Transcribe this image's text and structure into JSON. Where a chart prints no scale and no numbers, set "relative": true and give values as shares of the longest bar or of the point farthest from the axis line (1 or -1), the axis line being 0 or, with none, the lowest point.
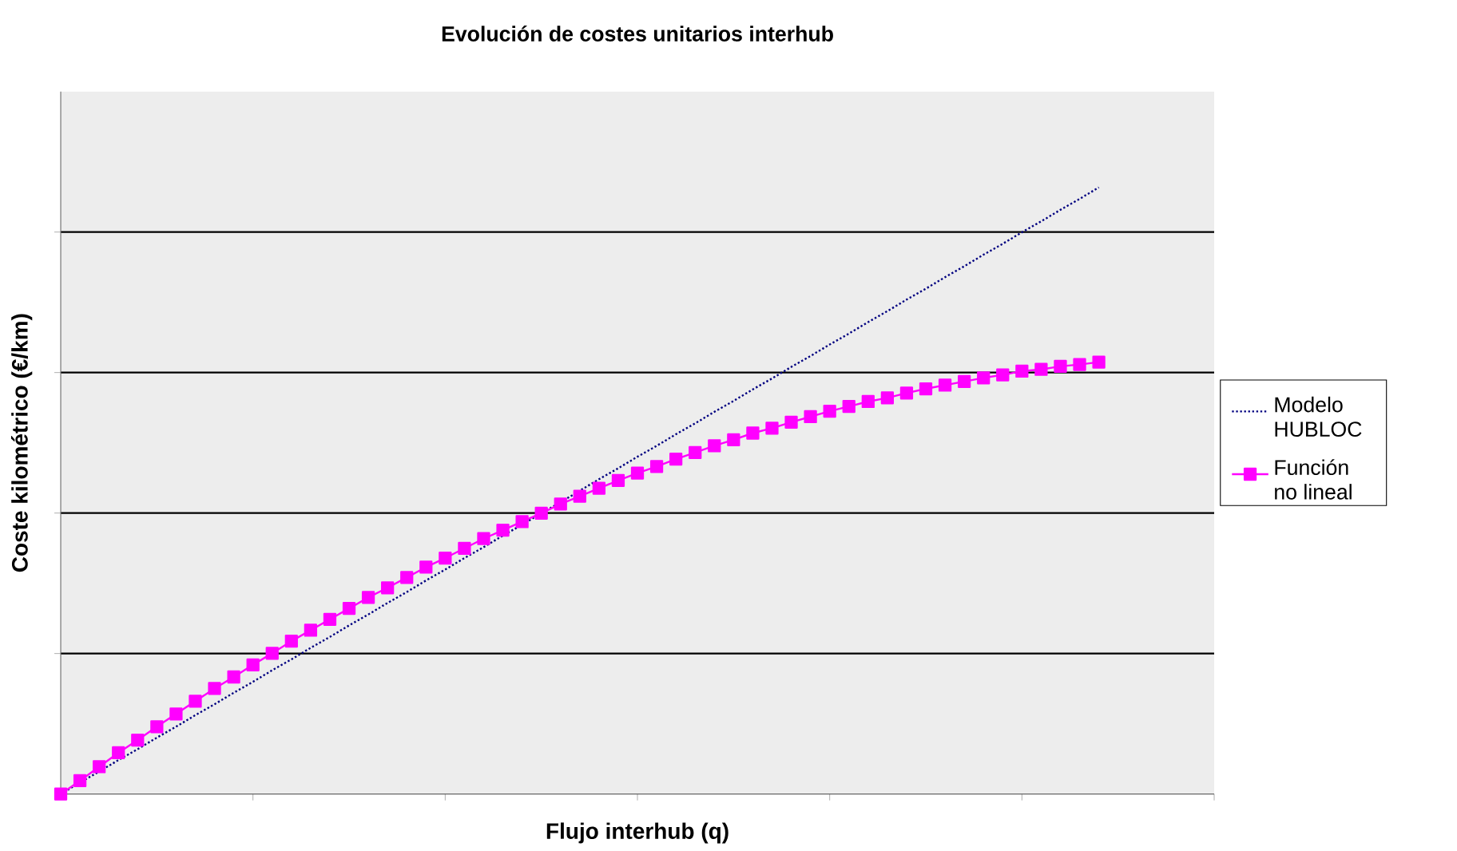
{
  "chart_data": {
    "type": "line",
    "title": "Evolución de costes unitarios interhub",
    "xlabel": "Flujo interhub (q)",
    "ylabel": "Coste kilométrico (€/km)",
    "relative": true,
    "grid": "y",
    "legend": "right",
    "tick_labels": false,
    "categories": [
      null,
      null,
      null,
      null,
      null,
      null,
      null,
      null,
      null,
      null,
      null,
      null,
      null,
      null,
      null,
      null,
      null,
      null,
      null,
      null,
      null,
      null,
      null,
      null,
      null,
      null,
      null,
      null,
      null,
      null,
      null,
      null,
      null,
      null,
      null,
      null,
      null,
      null,
      null,
      null,
      null,
      null,
      null,
      null,
      null,
      null,
      null,
      null,
      null,
      null,
      null,
      null,
      null,
      null,
      null
    ],
    "series": [
      {
        "name": "Modelo HUBLOC",
        "color": "#000080",
        "marker": "none",
        "line_style": "dotted",
        "values": [
          0,
          0.019,
          0.037,
          0.056,
          0.074,
          0.093,
          0.111,
          0.13,
          0.148,
          0.167,
          0.185,
          0.204,
          0.222,
          0.241,
          0.259,
          0.278,
          0.296,
          0.315,
          0.333,
          0.352,
          0.37,
          0.389,
          0.407,
          0.426,
          0.444,
          0.463,
          0.481,
          0.5,
          0.519,
          0.537,
          0.556,
          0.574,
          0.593,
          0.611,
          0.63,
          0.648,
          0.667,
          0.685,
          0.704,
          0.722,
          0.741,
          0.759,
          0.778,
          0.796,
          0.815,
          0.833,
          0.852,
          0.87,
          0.889,
          0.907,
          0.926,
          0.944,
          0.963,
          0.981,
          1
        ]
      },
      {
        "name": "Función no lineal",
        "color": "#ff00ff",
        "marker": "square",
        "line_style": "solid",
        "values": [
          0,
          0.022,
          0.045,
          0.068,
          0.089,
          0.111,
          0.132,
          0.153,
          0.174,
          0.193,
          0.213,
          0.232,
          0.252,
          0.27,
          0.288,
          0.306,
          0.324,
          0.34,
          0.357,
          0.374,
          0.389,
          0.405,
          0.421,
          0.435,
          0.449,
          0.463,
          0.478,
          0.491,
          0.504,
          0.517,
          0.529,
          0.54,
          0.552,
          0.563,
          0.574,
          0.584,
          0.595,
          0.603,
          0.613,
          0.622,
          0.631,
          0.639,
          0.647,
          0.653,
          0.661,
          0.668,
          0.674,
          0.68,
          0.686,
          0.691,
          0.697,
          0.7,
          0.705,
          0.708,
          0.712
        ]
      }
    ]
  }
}
